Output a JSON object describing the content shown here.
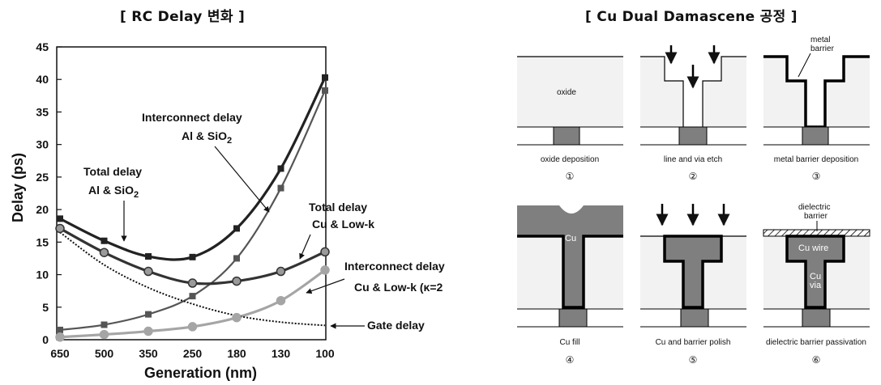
{
  "titles": {
    "left": "[ RC Delay 변화 ]",
    "right": "[ Cu Dual Damascene 공정 ]"
  },
  "chart_data": {
    "type": "line",
    "xlabel": "Generation (nm)",
    "ylabel": "Delay (ps)",
    "categories": [
      "650",
      "500",
      "350",
      "250",
      "180",
      "130",
      "100"
    ],
    "ylim": [
      0,
      45
    ],
    "yticks": [
      0,
      5,
      10,
      15,
      20,
      25,
      30,
      35,
      40,
      45
    ],
    "grid": false,
    "series": [
      {
        "key": "total_al",
        "values": [
          18.6,
          15.2,
          12.8,
          12.7,
          17.1,
          26.3,
          40.3
        ],
        "color": "#222222",
        "marker": "square",
        "width": 3.2
      },
      {
        "key": "int_al",
        "values": [
          1.5,
          2.3,
          3.9,
          6.7,
          12.5,
          23.3,
          38.3
        ],
        "color": "#555555",
        "marker": "square",
        "width": 2.2
      },
      {
        "key": "total_cu",
        "values": [
          17.1,
          13.4,
          10.5,
          8.7,
          9.0,
          10.5,
          13.5
        ],
        "color": "#333333",
        "marker": "circle",
        "width": 3.2
      },
      {
        "key": "int_cu",
        "values": [
          0.4,
          0.8,
          1.3,
          2.0,
          3.4,
          6.0,
          10.7
        ],
        "color": "#a5a5a5",
        "marker": "circle",
        "width": 3.2
      },
      {
        "key": "gate",
        "values": [
          16.5,
          11.5,
          8.0,
          5.5,
          3.7,
          2.7,
          2.2
        ],
        "color": "#111111",
        "marker": "none",
        "width": 2,
        "dash": true
      }
    ],
    "annotations": {
      "total_al_line1": "Total delay",
      "total_al_line2": "Al & SiO",
      "interconnect_al_line1": "Interconnect delay",
      "interconnect_al_line2": "Al & SiO",
      "subscript_2": "2",
      "total_cu_line1": "Total delay",
      "total_cu_line2": "Cu & Low-k",
      "interconnect_cu_line1": "Interconnect delay",
      "interconnect_cu_line2": "Cu & Low-k (κ=2",
      "gate": "Gate delay"
    }
  },
  "process": {
    "steps": [
      {
        "label": "oxide deposition",
        "num": "①"
      },
      {
        "label": "line and via etch",
        "num": "②"
      },
      {
        "label": "metal barrier deposition",
        "num": "③"
      },
      {
        "label": "Cu fill",
        "num": "④"
      },
      {
        "label": "Cu and barrier polish",
        "num": "⑤"
      },
      {
        "label": "dielectric barrier passivation",
        "num": "⑥"
      }
    ],
    "labels": {
      "oxide": "oxide",
      "metal_barrier_1": "metal",
      "metal_barrier_2": "barrier",
      "cu": "Cu",
      "dielectric_barrier_1": "dielectric",
      "dielectric_barrier_2": "barrier",
      "cu_wire": "Cu wire",
      "cu_via_1": "Cu",
      "cu_via_2": "via"
    },
    "colors": {
      "oxide": "#f2f2f2",
      "metal": "#7f7f7f",
      "outline": "#000000"
    }
  }
}
